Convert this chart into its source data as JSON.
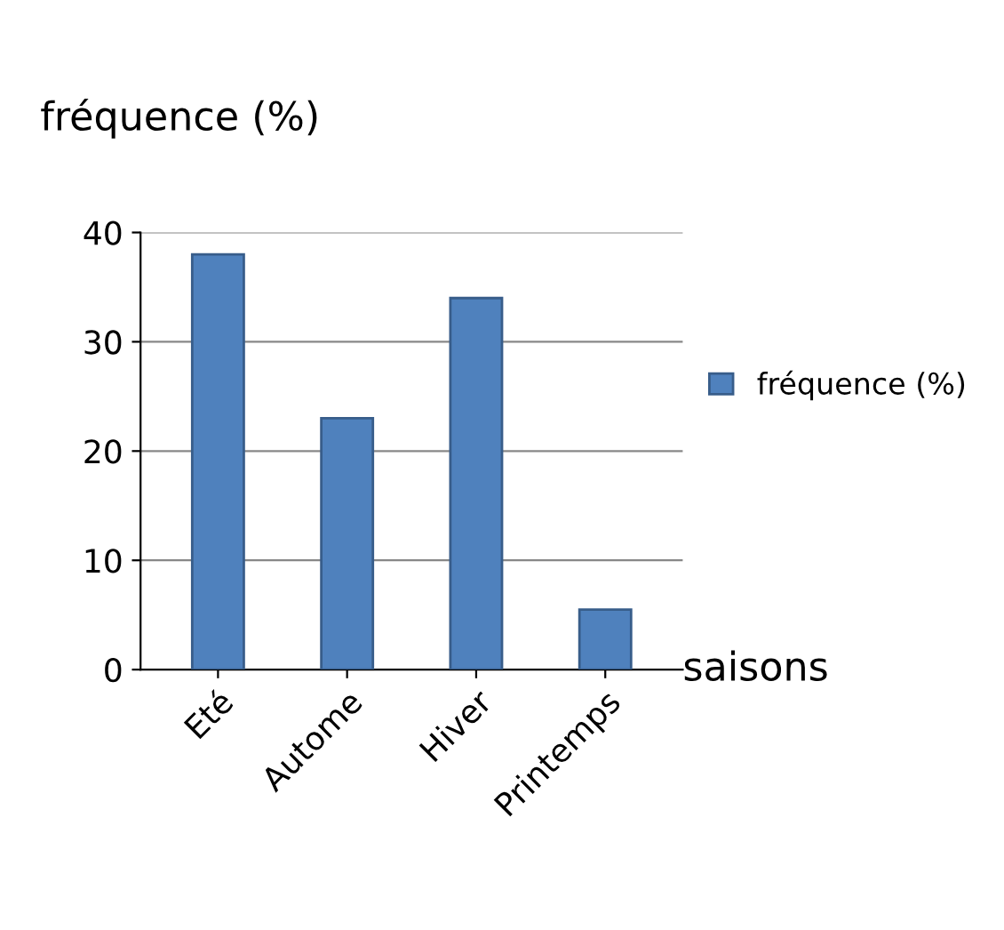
{
  "chart_data": {
    "type": "bar",
    "ylabel": "fréquence (%)",
    "xlabel": "saisons",
    "categories": [
      "Eté",
      "Autome",
      "Hiver",
      "Printemps"
    ],
    "series": [
      {
        "name": "fréquence (%)",
        "color": "#4f81bd",
        "values": [
          38,
          23,
          34,
          5.5
        ]
      }
    ],
    "ylim": [
      0,
      40
    ],
    "yticks": [
      0,
      10,
      20,
      30,
      40
    ],
    "grid": "y",
    "legend": "right"
  }
}
